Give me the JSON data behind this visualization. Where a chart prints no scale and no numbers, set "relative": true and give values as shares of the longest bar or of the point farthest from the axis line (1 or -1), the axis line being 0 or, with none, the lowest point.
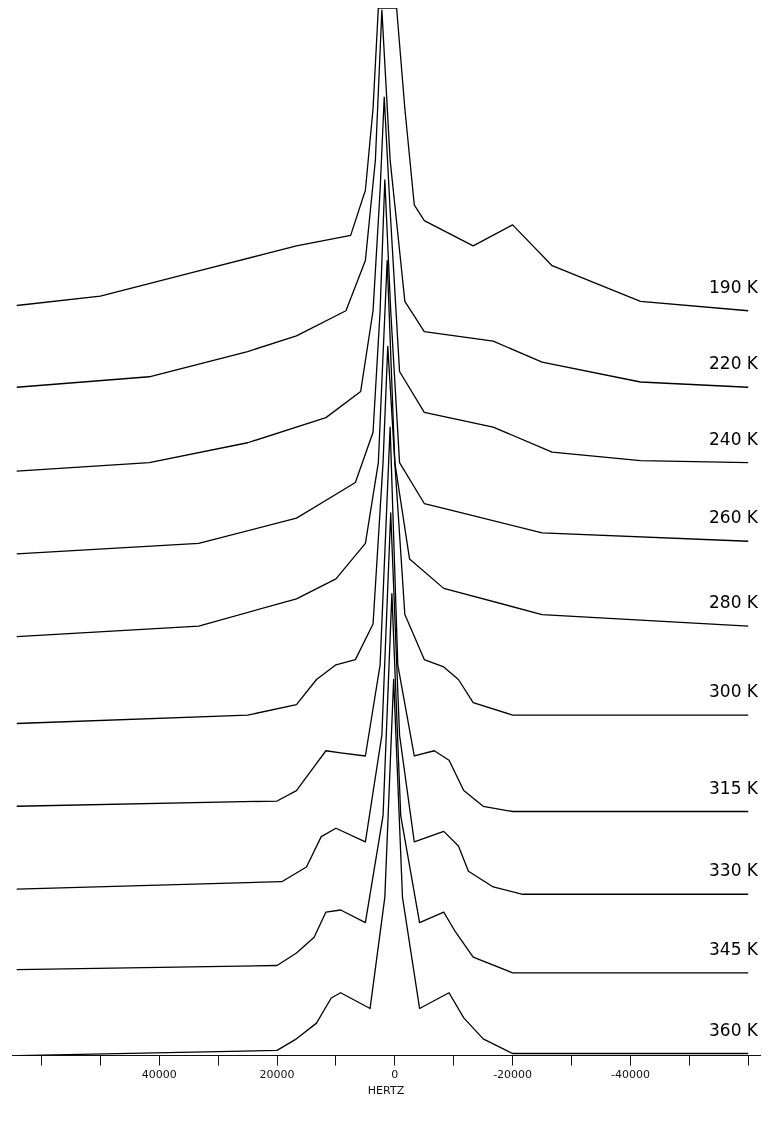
{
  "chart_data": {
    "type": "line",
    "xlabel": "HERTZ",
    "relative": true,
    "legend": false,
    "grid": false,
    "marker": "none",
    "line_style": "solid",
    "xlim": [
      65000,
      -62000
    ],
    "xticks": [
      {
        "value": 60000,
        "label": null
      },
      {
        "value": 50000,
        "label": null
      },
      40000,
      {
        "value": 30000,
        "label": null
      },
      20000,
      {
        "value": 10000,
        "label": null
      },
      0,
      {
        "value": -10000,
        "label": null
      },
      -20000,
      {
        "value": -30000,
        "label": null
      },
      -40000,
      {
        "value": -50000,
        "label": null
      },
      {
        "value": -60000,
        "label": null
      }
    ],
    "series": [
      {
        "name": "190 K",
        "color": "#000000",
        "x": [
          64200,
          50000,
          33300,
          16700,
          7500,
          5000,
          3700,
          2800,
          -300,
          -1700,
          -3300,
          -5000,
          -13300,
          -20000,
          -26700,
          -41700,
          -60000
        ],
        "values": [
          0.716,
          0.725,
          0.749,
          0.773,
          0.783,
          0.826,
          0.904,
          1,
          1,
          0.904,
          0.812,
          0.797,
          0.773,
          0.793,
          0.754,
          0.72,
          0.711
        ]
      },
      {
        "name": "220 K",
        "color": "#000000",
        "x": [
          64200,
          41700,
          25000,
          16700,
          8300,
          5000,
          3300,
          2200,
          800,
          -1700,
          -5000,
          -16700,
          -25000,
          -41700,
          -60000
        ],
        "values": [
          0.638,
          0.648,
          0.672,
          0.687,
          0.711,
          0.759,
          0.855,
          0.998,
          0.855,
          0.72,
          0.691,
          0.682,
          0.662,
          0.643,
          0.638
        ]
      },
      {
        "name": "240 K",
        "color": "#000000",
        "x": [
          64200,
          41700,
          25000,
          11700,
          5800,
          3700,
          2500,
          1800,
          800,
          -800,
          -5000,
          -16700,
          -26700,
          -41700,
          -60000
        ],
        "values": [
          0.558,
          0.566,
          0.585,
          0.609,
          0.634,
          0.711,
          0.826,
          0.915,
          0.807,
          0.653,
          0.614,
          0.6,
          0.576,
          0.568,
          0.566
        ]
      },
      {
        "name": "260 K",
        "color": "#000000",
        "x": [
          64200,
          33300,
          16700,
          6700,
          3700,
          2500,
          1700,
          700,
          -800,
          -5000,
          -25000,
          -60000
        ],
        "values": [
          0.479,
          0.489,
          0.513,
          0.547,
          0.595,
          0.711,
          0.836,
          0.711,
          0.566,
          0.527,
          0.499,
          0.491
        ]
      },
      {
        "name": "280 K",
        "color": "#000000",
        "x": [
          64200,
          33300,
          16700,
          10000,
          5000,
          2800,
          1300,
          0,
          -2500,
          -8300,
          -25000,
          -60000
        ],
        "values": [
          0.4,
          0.41,
          0.436,
          0.455,
          0.489,
          0.566,
          0.759,
          0.566,
          0.474,
          0.446,
          0.421,
          0.41
        ]
      },
      {
        "name": "300 K",
        "color": "#000000",
        "x": [
          64200,
          25000,
          16700,
          13300,
          10000,
          6700,
          3700,
          2000,
          1200,
          0,
          -1700,
          -5000,
          -8300,
          -10800,
          -13300,
          -20000,
          -60000
        ],
        "values": [
          0.317,
          0.325,
          0.335,
          0.359,
          0.373,
          0.378,
          0.412,
          0.566,
          0.677,
          0.566,
          0.421,
          0.378,
          0.371,
          0.359,
          0.337,
          0.325,
          0.325
        ]
      },
      {
        "name": "315 K",
        "color": "#000000",
        "x": [
          64200,
          20000,
          16700,
          14200,
          11700,
          9200,
          5000,
          2500,
          800,
          -500,
          -3300,
          -6700,
          -9200,
          -11700,
          -15000,
          -20000,
          -60000
        ],
        "values": [
          0.238,
          0.243,
          0.253,
          0.272,
          0.291,
          0.289,
          0.286,
          0.373,
          0.6,
          0.373,
          0.286,
          0.291,
          0.282,
          0.253,
          0.238,
          0.233,
          0.233
        ]
      },
      {
        "name": "330 K",
        "color": "#000000",
        "x": [
          64200,
          19200,
          15000,
          12500,
          10000,
          5000,
          2200,
          700,
          -800,
          -3300,
          -8300,
          -10800,
          -12500,
          -16700,
          -21700,
          -60000
        ],
        "values": [
          0.159,
          0.166,
          0.18,
          0.209,
          0.217,
          0.204,
          0.306,
          0.518,
          0.306,
          0.204,
          0.214,
          0.2,
          0.176,
          0.161,
          0.154,
          0.154
        ]
      },
      {
        "name": "345 K",
        "color": "#000000",
        "x": [
          64200,
          20000,
          16700,
          13700,
          11700,
          9200,
          5000,
          2000,
          500,
          -1000,
          -4200,
          -8300,
          -10300,
          -13300,
          -20000,
          -60000
        ],
        "values": [
          0.082,
          0.086,
          0.098,
          0.113,
          0.137,
          0.139,
          0.127,
          0.229,
          0.441,
          0.229,
          0.127,
          0.137,
          0.118,
          0.094,
          0.079,
          0.079
        ]
      },
      {
        "name": "360 K",
        "color": "#000000",
        "x": [
          64200,
          20000,
          16700,
          13300,
          10800,
          9200,
          4200,
          1700,
          200,
          -1300,
          -4200,
          -9200,
          -11700,
          -15000,
          -20000,
          -60000
        ],
        "values": [
          0,
          0.005,
          0.016,
          0.031,
          0.055,
          0.06,
          0.045,
          0.151,
          0.359,
          0.151,
          0.045,
          0.06,
          0.036,
          0.016,
          0.002,
          0.002
        ]
      }
    ]
  }
}
